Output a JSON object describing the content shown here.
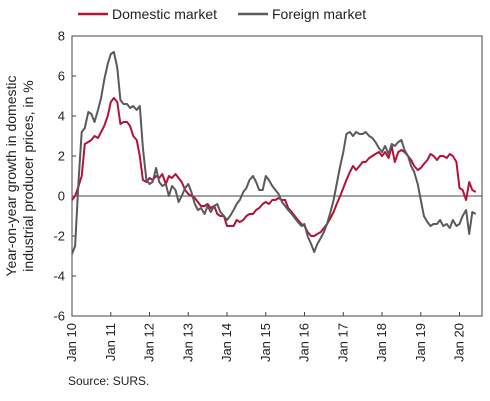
{
  "chart_data": {
    "type": "line",
    "ylabel_lines": [
      "Year-on-year growth in domestic",
      "industrial producer prices, in %"
    ],
    "ylim": [
      -6,
      8
    ],
    "yticks": [
      -6,
      -4,
      -2,
      0,
      2,
      4,
      6,
      8
    ],
    "xlim": [
      2010,
      2020.58
    ],
    "xticks": [
      {
        "label": "Jan 10",
        "x": 2010
      },
      {
        "label": "Jan 11",
        "x": 2011
      },
      {
        "label": "Jan 12",
        "x": 2012
      },
      {
        "label": "Jan 13",
        "x": 2013
      },
      {
        "label": "Jan 14",
        "x": 2014
      },
      {
        "label": "Jan 15",
        "x": 2015
      },
      {
        "label": "Jan 16",
        "x": 2016
      },
      {
        "label": "Jan 17",
        "x": 2017
      },
      {
        "label": "Jan 18",
        "x": 2018
      },
      {
        "label": "Jan 19",
        "x": 2019
      },
      {
        "label": "Jan 20",
        "x": 2020
      }
    ],
    "grid": false,
    "legend_position": "top",
    "series": [
      {
        "name": "Domestic market",
        "color": "#b5123a",
        "points": [
          [
            2010.0,
            -0.2
          ],
          [
            2010.08,
            0.0
          ],
          [
            2010.17,
            0.5
          ],
          [
            2010.25,
            1.0
          ],
          [
            2010.33,
            2.6
          ],
          [
            2010.42,
            2.7
          ],
          [
            2010.5,
            2.8
          ],
          [
            2010.58,
            3.0
          ],
          [
            2010.67,
            2.9
          ],
          [
            2010.75,
            3.2
          ],
          [
            2010.83,
            3.5
          ],
          [
            2010.92,
            4.0
          ],
          [
            2011.0,
            4.7
          ],
          [
            2011.08,
            4.9
          ],
          [
            2011.17,
            4.7
          ],
          [
            2011.25,
            3.6
          ],
          [
            2011.33,
            3.7
          ],
          [
            2011.42,
            3.7
          ],
          [
            2011.5,
            3.5
          ],
          [
            2011.58,
            3.0
          ],
          [
            2011.67,
            2.8
          ],
          [
            2011.75,
            2.0
          ],
          [
            2011.83,
            0.8
          ],
          [
            2011.92,
            0.7
          ],
          [
            2012.0,
            0.9
          ],
          [
            2012.08,
            0.8
          ],
          [
            2012.17,
            1.0
          ],
          [
            2012.25,
            0.9
          ],
          [
            2012.33,
            1.1
          ],
          [
            2012.42,
            0.6
          ],
          [
            2012.5,
            1.0
          ],
          [
            2012.58,
            0.9
          ],
          [
            2012.67,
            1.1
          ],
          [
            2012.75,
            0.9
          ],
          [
            2012.83,
            0.7
          ],
          [
            2012.92,
            0.3
          ],
          [
            2013.0,
            0.1
          ],
          [
            2013.08,
            0.0
          ],
          [
            2013.17,
            -0.1
          ],
          [
            2013.25,
            -0.3
          ],
          [
            2013.33,
            -0.5
          ],
          [
            2013.42,
            -0.5
          ],
          [
            2013.5,
            -0.4
          ],
          [
            2013.58,
            -0.6
          ],
          [
            2013.67,
            -0.5
          ],
          [
            2013.75,
            -0.9
          ],
          [
            2013.83,
            -1.0
          ],
          [
            2013.92,
            -1.0
          ],
          [
            2014.0,
            -1.5
          ],
          [
            2014.08,
            -1.5
          ],
          [
            2014.17,
            -1.5
          ],
          [
            2014.25,
            -1.2
          ],
          [
            2014.33,
            -1.3
          ],
          [
            2014.42,
            -1.2
          ],
          [
            2014.5,
            -1.0
          ],
          [
            2014.58,
            -0.9
          ],
          [
            2014.67,
            -0.9
          ],
          [
            2014.75,
            -0.7
          ],
          [
            2014.83,
            -0.6
          ],
          [
            2014.92,
            -0.4
          ],
          [
            2015.0,
            -0.3
          ],
          [
            2015.08,
            -0.4
          ],
          [
            2015.17,
            -0.2
          ],
          [
            2015.25,
            -0.2
          ],
          [
            2015.33,
            -0.1
          ],
          [
            2015.42,
            -0.2
          ],
          [
            2015.5,
            -0.2
          ],
          [
            2015.58,
            -0.6
          ],
          [
            2015.67,
            -0.8
          ],
          [
            2015.75,
            -1.0
          ],
          [
            2015.83,
            -1.2
          ],
          [
            2015.92,
            -1.4
          ],
          [
            2016.0,
            -1.5
          ],
          [
            2016.08,
            -1.8
          ],
          [
            2016.17,
            -2.0
          ],
          [
            2016.25,
            -2.0
          ],
          [
            2016.33,
            -1.9
          ],
          [
            2016.42,
            -1.8
          ],
          [
            2016.5,
            -1.6
          ],
          [
            2016.58,
            -1.4
          ],
          [
            2016.67,
            -1.1
          ],
          [
            2016.75,
            -0.8
          ],
          [
            2016.83,
            -0.4
          ],
          [
            2016.92,
            0.0
          ],
          [
            2017.0,
            0.4
          ],
          [
            2017.08,
            0.8
          ],
          [
            2017.17,
            1.2
          ],
          [
            2017.25,
            1.5
          ],
          [
            2017.33,
            1.3
          ],
          [
            2017.42,
            1.5
          ],
          [
            2017.5,
            1.7
          ],
          [
            2017.58,
            1.7
          ],
          [
            2017.67,
            1.9
          ],
          [
            2017.75,
            2.0
          ],
          [
            2017.83,
            2.1
          ],
          [
            2017.92,
            2.2
          ],
          [
            2018.0,
            2.0
          ],
          [
            2018.08,
            2.2
          ],
          [
            2018.17,
            1.9
          ],
          [
            2018.25,
            2.5
          ],
          [
            2018.33,
            1.7
          ],
          [
            2018.42,
            2.2
          ],
          [
            2018.5,
            2.3
          ],
          [
            2018.58,
            2.2
          ],
          [
            2018.67,
            2.0
          ],
          [
            2018.75,
            1.8
          ],
          [
            2018.83,
            1.5
          ],
          [
            2018.92,
            1.3
          ],
          [
            2019.0,
            1.4
          ],
          [
            2019.08,
            1.6
          ],
          [
            2019.17,
            1.8
          ],
          [
            2019.25,
            2.1
          ],
          [
            2019.33,
            2.0
          ],
          [
            2019.42,
            1.8
          ],
          [
            2019.5,
            2.0
          ],
          [
            2019.58,
            2.0
          ],
          [
            2019.67,
            1.9
          ],
          [
            2019.75,
            2.1
          ],
          [
            2019.83,
            2.0
          ],
          [
            2019.92,
            1.7
          ],
          [
            2020.0,
            0.4
          ],
          [
            2020.08,
            0.3
          ],
          [
            2020.17,
            -0.2
          ],
          [
            2020.25,
            0.7
          ],
          [
            2020.33,
            0.3
          ],
          [
            2020.42,
            0.2
          ]
        ]
      },
      {
        "name": "Foreign market",
        "color": "#5a5a5a",
        "points": [
          [
            2010.0,
            -2.9
          ],
          [
            2010.08,
            -2.5
          ],
          [
            2010.17,
            0.8
          ],
          [
            2010.25,
            3.2
          ],
          [
            2010.33,
            3.4
          ],
          [
            2010.42,
            4.2
          ],
          [
            2010.5,
            4.1
          ],
          [
            2010.58,
            3.7
          ],
          [
            2010.67,
            4.3
          ],
          [
            2010.75,
            4.9
          ],
          [
            2010.83,
            5.8
          ],
          [
            2010.92,
            6.6
          ],
          [
            2011.0,
            7.1
          ],
          [
            2011.08,
            7.2
          ],
          [
            2011.17,
            6.4
          ],
          [
            2011.25,
            4.8
          ],
          [
            2011.33,
            4.6
          ],
          [
            2011.42,
            4.6
          ],
          [
            2011.5,
            4.4
          ],
          [
            2011.58,
            4.5
          ],
          [
            2011.67,
            4.3
          ],
          [
            2011.75,
            4.5
          ],
          [
            2011.83,
            2.4
          ],
          [
            2011.92,
            0.8
          ],
          [
            2012.0,
            0.6
          ],
          [
            2012.08,
            0.7
          ],
          [
            2012.17,
            1.4
          ],
          [
            2012.25,
            0.7
          ],
          [
            2012.33,
            0.5
          ],
          [
            2012.42,
            0.6
          ],
          [
            2012.5,
            0.0
          ],
          [
            2012.58,
            0.5
          ],
          [
            2012.67,
            0.3
          ],
          [
            2012.75,
            -0.3
          ],
          [
            2012.83,
            0.0
          ],
          [
            2012.92,
            0.4
          ],
          [
            2013.0,
            0.6
          ],
          [
            2013.08,
            0.2
          ],
          [
            2013.17,
            -0.4
          ],
          [
            2013.25,
            -0.7
          ],
          [
            2013.33,
            -0.6
          ],
          [
            2013.42,
            -0.9
          ],
          [
            2013.5,
            -0.5
          ],
          [
            2013.58,
            -0.8
          ],
          [
            2013.67,
            -0.5
          ],
          [
            2013.75,
            -0.4
          ],
          [
            2013.83,
            -0.8
          ],
          [
            2013.92,
            -1.0
          ],
          [
            2014.0,
            -1.2
          ],
          [
            2014.08,
            -1.0
          ],
          [
            2014.17,
            -0.7
          ],
          [
            2014.25,
            -0.4
          ],
          [
            2014.33,
            -0.2
          ],
          [
            2014.42,
            0.2
          ],
          [
            2014.5,
            0.4
          ],
          [
            2014.58,
            0.8
          ],
          [
            2014.67,
            1.0
          ],
          [
            2014.75,
            0.7
          ],
          [
            2014.83,
            0.3
          ],
          [
            2014.92,
            0.3
          ],
          [
            2015.0,
            1.0
          ],
          [
            2015.08,
            0.8
          ],
          [
            2015.17,
            0.5
          ],
          [
            2015.25,
            0.3
          ],
          [
            2015.33,
            0.1
          ],
          [
            2015.42,
            -0.3
          ],
          [
            2015.5,
            -0.5
          ],
          [
            2015.58,
            -0.7
          ],
          [
            2015.67,
            -0.9
          ],
          [
            2015.75,
            -1.1
          ],
          [
            2015.83,
            -1.3
          ],
          [
            2015.92,
            -1.5
          ],
          [
            2016.0,
            -1.4
          ],
          [
            2016.08,
            -2.0
          ],
          [
            2016.17,
            -2.4
          ],
          [
            2016.25,
            -2.8
          ],
          [
            2016.33,
            -2.4
          ],
          [
            2016.42,
            -2.1
          ],
          [
            2016.5,
            -1.8
          ],
          [
            2016.58,
            -1.4
          ],
          [
            2016.67,
            -0.8
          ],
          [
            2016.75,
            -0.2
          ],
          [
            2016.83,
            0.6
          ],
          [
            2016.92,
            1.5
          ],
          [
            2017.0,
            2.2
          ],
          [
            2017.08,
            3.1
          ],
          [
            2017.17,
            3.2
          ],
          [
            2017.25,
            3.0
          ],
          [
            2017.33,
            3.2
          ],
          [
            2017.42,
            3.1
          ],
          [
            2017.5,
            3.1
          ],
          [
            2017.58,
            3.2
          ],
          [
            2017.67,
            3.0
          ],
          [
            2017.75,
            2.9
          ],
          [
            2017.83,
            2.7
          ],
          [
            2017.92,
            2.4
          ],
          [
            2018.0,
            2.2
          ],
          [
            2018.08,
            2.5
          ],
          [
            2018.17,
            2.1
          ],
          [
            2018.25,
            2.6
          ],
          [
            2018.33,
            2.5
          ],
          [
            2018.42,
            2.7
          ],
          [
            2018.5,
            2.8
          ],
          [
            2018.58,
            2.3
          ],
          [
            2018.67,
            2.0
          ],
          [
            2018.75,
            1.5
          ],
          [
            2018.83,
            1.2
          ],
          [
            2018.92,
            0.6
          ],
          [
            2019.0,
            -0.2
          ],
          [
            2019.08,
            -1.0
          ],
          [
            2019.17,
            -1.3
          ],
          [
            2019.25,
            -1.5
          ],
          [
            2019.33,
            -1.4
          ],
          [
            2019.42,
            -1.4
          ],
          [
            2019.5,
            -1.2
          ],
          [
            2019.58,
            -1.5
          ],
          [
            2019.67,
            -1.4
          ],
          [
            2019.75,
            -1.6
          ],
          [
            2019.83,
            -1.2
          ],
          [
            2019.92,
            -1.5
          ],
          [
            2020.0,
            -1.4
          ],
          [
            2020.08,
            -1.0
          ],
          [
            2020.17,
            -0.7
          ],
          [
            2020.25,
            -1.9
          ],
          [
            2020.33,
            -0.8
          ],
          [
            2020.42,
            -0.9
          ]
        ]
      }
    ]
  },
  "source": "Source: SURS."
}
